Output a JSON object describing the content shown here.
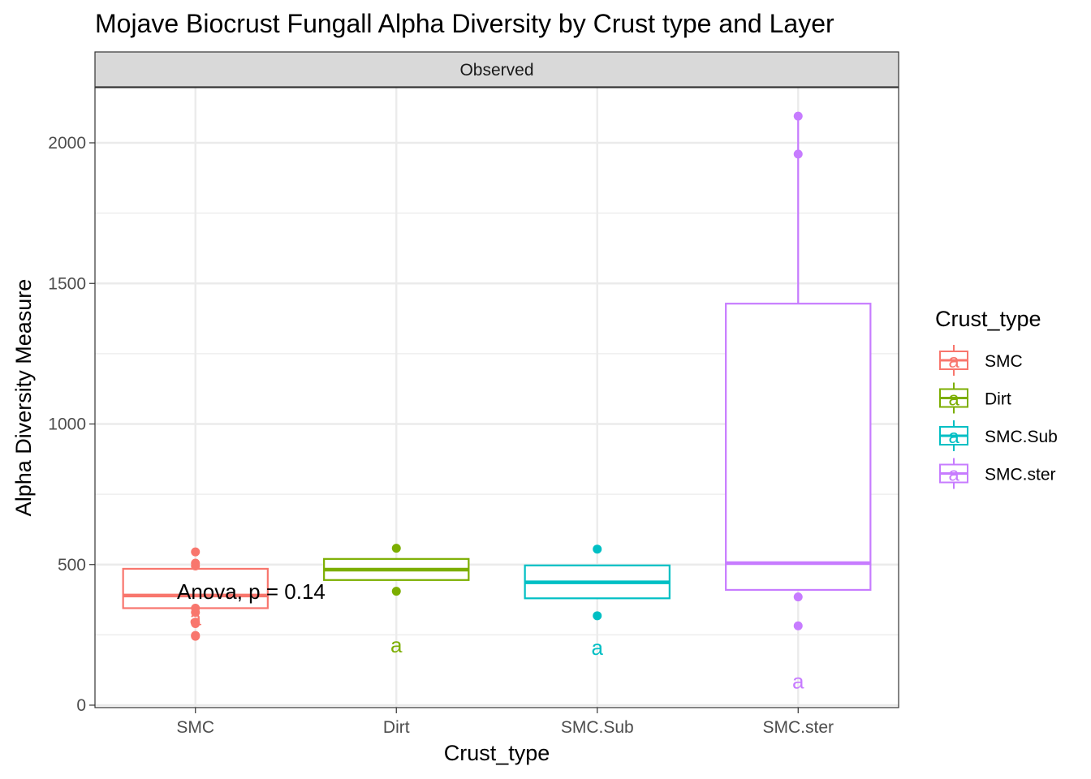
{
  "chart_data": {
    "type": "box",
    "title": "Mojave Biocrust Fungall Alpha Diversity by Crust type and Layer",
    "facet_label": "Observed",
    "xlabel": "Crust_type",
    "ylabel": "Alpha Diversity Measure",
    "ylim": [
      0,
      2200
    ],
    "yticks": [
      0,
      500,
      1000,
      1500,
      2000
    ],
    "grid": true,
    "legend": {
      "title": "Crust_type",
      "placement": "right"
    },
    "annotation": "Anova, p = 0.14",
    "categories": [
      "SMC",
      "Dirt",
      "SMC.Sub",
      "SMC.ster"
    ],
    "series": [
      {
        "name": "SMC",
        "color": "#F8766D",
        "q1": 345,
        "median": 390,
        "q3": 485,
        "whisker_low": 345,
        "whisker_high": 485,
        "points": [
          545,
          505,
          495,
          345,
          330,
          295,
          290,
          248,
          245
        ],
        "letter": "a",
        "letter_y": 310
      },
      {
        "name": "Dirt",
        "color": "#7CAE00",
        "q1": 445,
        "median": 482,
        "q3": 520,
        "whisker_low": 445,
        "whisker_high": 520,
        "points": [
          558,
          405
        ],
        "letter": "a",
        "letter_y": 213
      },
      {
        "name": "SMC.Sub",
        "color": "#00BFC4",
        "q1": 380,
        "median": 437,
        "q3": 497,
        "whisker_low": 380,
        "whisker_high": 497,
        "points": [
          555,
          318
        ],
        "letter": "a",
        "letter_y": 205
      },
      {
        "name": "SMC.ster",
        "color": "#C77CFF",
        "q1": 410,
        "median": 505,
        "q3": 1428,
        "whisker_low": 410,
        "whisker_high": 2100,
        "points": [
          2095,
          1960,
          385,
          282
        ],
        "letter": "a",
        "letter_y": 85
      }
    ]
  }
}
